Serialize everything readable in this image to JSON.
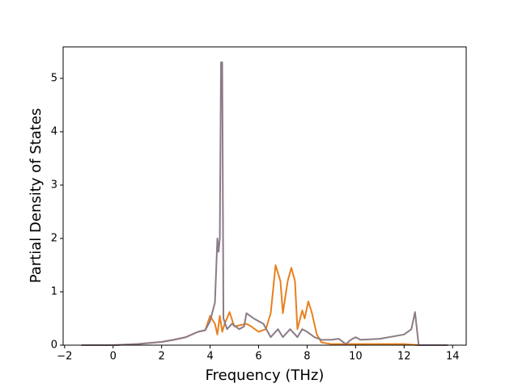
{
  "chart_data": {
    "type": "line",
    "xlabel": "Frequency (THz)",
    "ylabel": "Partial Density of States",
    "xlim": [
      -2.06,
      14.56
    ],
    "ylim": [
      0,
      5.59
    ],
    "xticks": [
      {
        "value": -2,
        "label": "−2"
      },
      0,
      2,
      4,
      6,
      8,
      10,
      12,
      14
    ],
    "yticks": [
      0,
      1,
      2,
      3,
      4,
      5
    ],
    "grid": false,
    "series": [
      {
        "color": "#e8801f",
        "x": [
          -1.3,
          0,
          1,
          2,
          2.5,
          3,
          3.5,
          3.8,
          4.0,
          4.2,
          4.3,
          4.4,
          4.5,
          4.6,
          4.8,
          5.0,
          5.5,
          5.7,
          6.0,
          6.3,
          6.5,
          6.7,
          6.9,
          7.0,
          7.2,
          7.35,
          7.5,
          7.6,
          7.8,
          7.9,
          8.05,
          8.2,
          8.4,
          8.6,
          9.0,
          12.0,
          12.6,
          13.8
        ],
        "values": [
          0,
          0,
          0.02,
          0.06,
          0.1,
          0.15,
          0.25,
          0.28,
          0.55,
          0.4,
          0.2,
          0.55,
          0.25,
          0.4,
          0.62,
          0.35,
          0.4,
          0.35,
          0.25,
          0.3,
          0.6,
          1.5,
          1.2,
          0.6,
          1.2,
          1.45,
          1.2,
          0.3,
          0.65,
          0.5,
          0.82,
          0.6,
          0.2,
          0.05,
          0.02,
          0.02,
          0,
          0
        ]
      },
      {
        "color": "#8c7b87",
        "x": [
          -1.3,
          0,
          1,
          2,
          2.5,
          3,
          3.5,
          3.8,
          4.0,
          4.2,
          4.3,
          4.35,
          4.4,
          4.45,
          4.5,
          4.55,
          4.7,
          4.9,
          5.2,
          5.4,
          5.5,
          5.8,
          6.2,
          6.5,
          6.8,
          7.0,
          7.3,
          7.6,
          7.8,
          8.0,
          8.3,
          8.6,
          9.0,
          9.3,
          9.6,
          9.8,
          10.0,
          10.2,
          11.0,
          12.0,
          12.3,
          12.45,
          12.6,
          13.8
        ],
        "values": [
          0,
          0,
          0.02,
          0.06,
          0.1,
          0.15,
          0.25,
          0.28,
          0.45,
          0.8,
          2.0,
          1.75,
          2.0,
          5.3,
          5.3,
          0.5,
          0.3,
          0.4,
          0.3,
          0.35,
          0.6,
          0.5,
          0.4,
          0.15,
          0.3,
          0.15,
          0.3,
          0.15,
          0.3,
          0.25,
          0.15,
          0.1,
          0.1,
          0.12,
          0.02,
          0.1,
          0.15,
          0.1,
          0.12,
          0.2,
          0.3,
          0.62,
          0,
          0
        ]
      }
    ]
  }
}
